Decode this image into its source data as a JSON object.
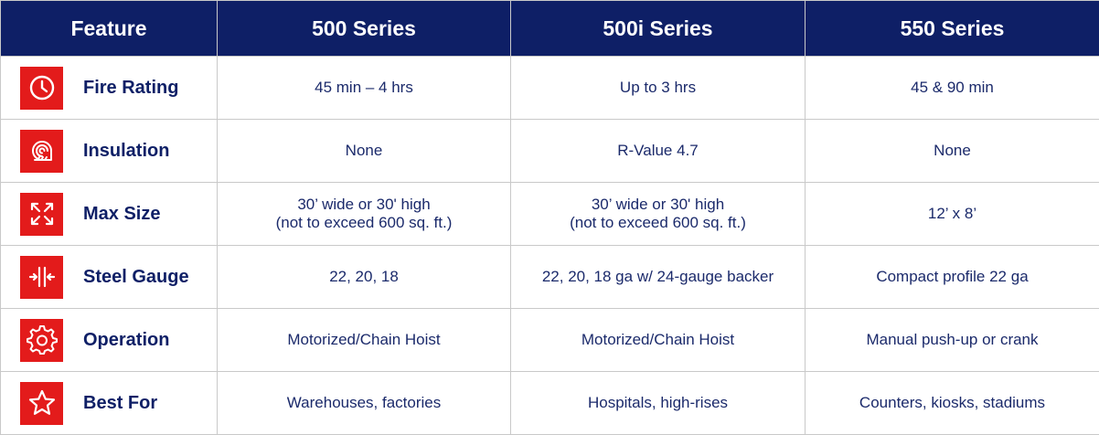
{
  "header": {
    "feature": "Feature",
    "col1": "500 Series",
    "col2": "500i Series",
    "col3": "550 Series"
  },
  "rows": [
    {
      "label": "Fire Rating",
      "icon": "clock-icon",
      "c1": [
        "45 min – 4 hrs"
      ],
      "c2": [
        "Up to 3 hrs"
      ],
      "c3": [
        "45 & 90 min"
      ]
    },
    {
      "label": "Insulation",
      "icon": "insulation-roll-icon",
      "c1": [
        "None"
      ],
      "c2": [
        "R-Value 4.7"
      ],
      "c3": [
        "None"
      ]
    },
    {
      "label": "Max Size",
      "icon": "expand-arrows-icon",
      "c1": [
        "30’ wide or 30' high",
        "(not to exceed 600 sq. ft.)"
      ],
      "c2": [
        "30’ wide or 30' high",
        "(not to exceed 600 sq. ft.)"
      ],
      "c3": [
        "12’ x 8’"
      ]
    },
    {
      "label": "Steel Gauge",
      "icon": "compress-arrows-icon",
      "c1": [
        "22, 20, 18"
      ],
      "c2": [
        "22, 20, 18 ga w/ 24-gauge backer"
      ],
      "c3": [
        "Compact profile 22 ga"
      ]
    },
    {
      "label": "Operation",
      "icon": "gear-icon",
      "c1": [
        "Motorized/Chain Hoist"
      ],
      "c2": [
        "Motorized/Chain Hoist"
      ],
      "c3": [
        "Manual push-up or crank"
      ]
    },
    {
      "label": "Best For",
      "icon": "star-icon",
      "c1": [
        "Warehouses, factories"
      ],
      "c2": [
        "Hospitals, high-rises"
      ],
      "c3": [
        "Counters, kiosks, stadiums"
      ]
    }
  ],
  "colors": {
    "header_bg": "#0e1f66",
    "icon_bg": "#e31b1b",
    "text": "#1b2a6b"
  }
}
